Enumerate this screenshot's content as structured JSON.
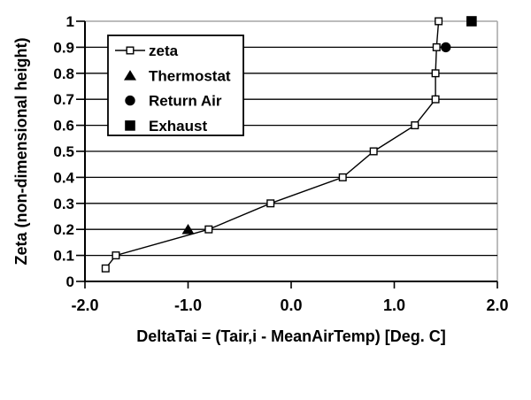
{
  "chart_data": {
    "type": "line",
    "title": "",
    "xlabel": "DeltaTai = (Tair,i - MeanAirTemp) [Deg. C]",
    "ylabel": "Zeta (non-dimensional height)",
    "xlim": [
      -2.0,
      2.0
    ],
    "ylim": [
      0,
      1
    ],
    "x_tick_values": [
      -2.0,
      -1.0,
      0.0,
      1.0,
      2.0
    ],
    "x_tick_labels": [
      "-2.0",
      "-1.0",
      "0.0",
      "1.0",
      "2.0"
    ],
    "y_tick_values": [
      0,
      0.1,
      0.2,
      0.3,
      0.4,
      0.5,
      0.6,
      0.7,
      0.8,
      0.9,
      1
    ],
    "y_tick_labels": [
      "0",
      "0.1",
      "0.2",
      "0.3",
      "0.4",
      "0.5",
      "0.6",
      "0.7",
      "0.8",
      "0.9",
      "1"
    ],
    "grid": "horizontal",
    "legend_position": "upper-left-inside",
    "series": [
      {
        "name": "zeta",
        "marker": "open-square",
        "line": true,
        "points": [
          [
            -1.8,
            0.05
          ],
          [
            -1.7,
            0.1
          ],
          [
            -0.8,
            0.2
          ],
          [
            -0.2,
            0.3
          ],
          [
            0.5,
            0.4
          ],
          [
            0.8,
            0.5
          ],
          [
            1.2,
            0.6
          ],
          [
            1.4,
            0.7
          ],
          [
            1.4,
            0.8
          ],
          [
            1.41,
            0.9
          ],
          [
            1.43,
            1.0
          ]
        ]
      },
      {
        "name": "Thermostat",
        "marker": "filled-triangle",
        "line": false,
        "points": [
          [
            -1.0,
            0.2
          ]
        ]
      },
      {
        "name": "Return Air",
        "marker": "filled-circle",
        "line": false,
        "points": [
          [
            1.5,
            0.9
          ]
        ]
      },
      {
        "name": "Exhaust",
        "marker": "filled-square",
        "line": false,
        "points": [
          [
            1.75,
            1.0
          ]
        ]
      }
    ],
    "colors": {
      "foreground": "#000000",
      "plot_border": "#a6a6a6",
      "background": "#ffffff",
      "marker_fill_open": "#ffffff"
    }
  }
}
